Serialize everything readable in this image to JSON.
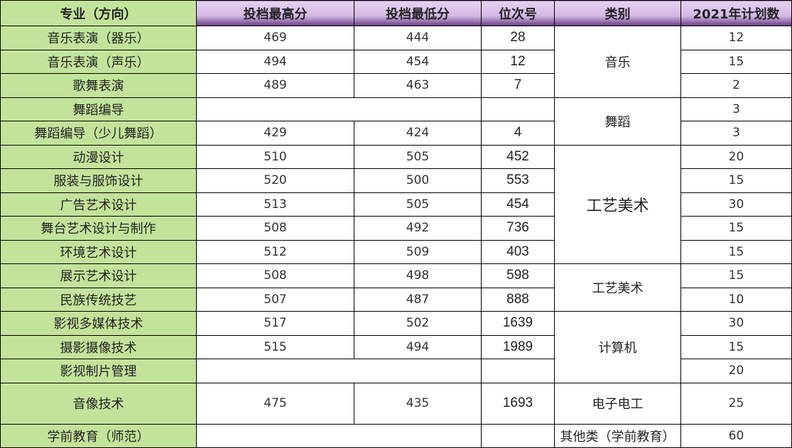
{
  "headers": [
    "专业（方向）",
    "投档最高分",
    "投档最低分",
    "位次号",
    "类别",
    "2021年计划数"
  ],
  "colors": {
    "header_purple": "#d4b8e6",
    "name_green": "#c3e39b"
  },
  "rows": [
    {
      "name": "音乐表演（器乐）",
      "max": "469",
      "min": "444",
      "rank": "28",
      "plan": "12"
    },
    {
      "name": "音乐表演（声乐）",
      "max": "494",
      "min": "454",
      "rank": "12",
      "plan": "15"
    },
    {
      "name": "歌舞表演",
      "max": "489",
      "min": "463",
      "rank": "7",
      "plan": "2"
    },
    {
      "name": "舞蹈编导",
      "max": "",
      "min": "",
      "rank": "",
      "plan": "3"
    },
    {
      "name": "舞蹈编导（少儿舞蹈）",
      "max": "429",
      "min": "424",
      "rank": "4",
      "plan": "3"
    },
    {
      "name": "动漫设计",
      "max": "510",
      "min": "505",
      "rank": "452",
      "plan": "20"
    },
    {
      "name": "服装与服饰设计",
      "max": "520",
      "min": "500",
      "rank": "553",
      "plan": "15"
    },
    {
      "name": "广告艺术设计",
      "max": "513",
      "min": "505",
      "rank": "454",
      "plan": "30"
    },
    {
      "name": "舞台艺术设计与制作",
      "max": "508",
      "min": "492",
      "rank": "736",
      "plan": "15"
    },
    {
      "name": "环境艺术设计",
      "max": "512",
      "min": "509",
      "rank": "403",
      "plan": "15"
    },
    {
      "name": "展示艺术设计",
      "max": "508",
      "min": "498",
      "rank": "598",
      "plan": "15"
    },
    {
      "name": "民族传统技艺",
      "max": "507",
      "min": "487",
      "rank": "888",
      "plan": "10"
    },
    {
      "name": "影视多媒体技术",
      "max": "517",
      "min": "502",
      "rank": "1639",
      "plan": "30"
    },
    {
      "name": "摄影摄像技术",
      "max": "515",
      "min": "494",
      "rank": "1989",
      "plan": "15"
    },
    {
      "name": "影视制片管理",
      "max": "",
      "min": "",
      "rank": "",
      "plan": "20"
    },
    {
      "name": "音像技术",
      "max": "475",
      "min": "435",
      "rank": "1693",
      "plan": "25"
    },
    {
      "name": "学前教育（师范）",
      "max": "",
      "min": "",
      "rank": "",
      "plan": "60"
    }
  ],
  "categories": [
    "音乐",
    "舞蹈",
    "工艺美术",
    "工艺美术",
    "计算机",
    "电子电工",
    "其他类（学前教育）"
  ]
}
